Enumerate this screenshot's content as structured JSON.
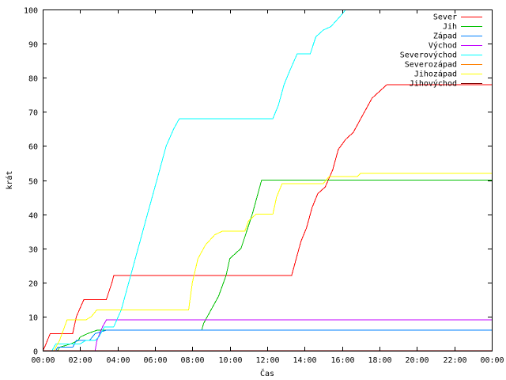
{
  "chart_data": {
    "type": "line",
    "title": "",
    "xlabel": "Čas",
    "ylabel": "krát",
    "xlim": [
      0,
      24
    ],
    "ylim": [
      0,
      100
    ],
    "grid": false,
    "legend_position": "top-right",
    "x_tick_labels": [
      "00:00",
      "02:00",
      "04:00",
      "06:00",
      "08:00",
      "10:00",
      "12:00",
      "14:00",
      "16:00",
      "18:00",
      "20:00",
      "22:00",
      "00:00"
    ],
    "y_tick_labels": [
      "0",
      "10",
      "20",
      "30",
      "40",
      "50",
      "60",
      "70",
      "80",
      "90",
      "100"
    ],
    "series": [
      {
        "name": "Sever",
        "color": "#ff0000",
        "points": [
          [
            0,
            0
          ],
          [
            0.1,
            1
          ],
          [
            0.4,
            5
          ],
          [
            1.6,
            5
          ],
          [
            1.8,
            10
          ],
          [
            2.2,
            15
          ],
          [
            3.4,
            15
          ],
          [
            3.7,
            20
          ],
          [
            3.8,
            22
          ],
          [
            13.3,
            22
          ],
          [
            13.6,
            28
          ],
          [
            13.8,
            32
          ],
          [
            14.1,
            36
          ],
          [
            14.4,
            42
          ],
          [
            14.7,
            46
          ],
          [
            15.1,
            48
          ],
          [
            15.5,
            53
          ],
          [
            15.8,
            59
          ],
          [
            16.2,
            62
          ],
          [
            16.6,
            64
          ],
          [
            17.0,
            68
          ],
          [
            17.3,
            71
          ],
          [
            17.6,
            74
          ],
          [
            18.0,
            76
          ],
          [
            18.4,
            78
          ],
          [
            24,
            78
          ]
        ]
      },
      {
        "name": "Jih",
        "color": "#00c000",
        "points": [
          [
            0,
            0
          ],
          [
            0.8,
            0
          ],
          [
            0.9,
            1
          ],
          [
            1.5,
            2
          ],
          [
            1.9,
            3
          ],
          [
            2.0,
            4
          ],
          [
            2.4,
            5
          ],
          [
            2.9,
            6
          ],
          [
            3.1,
            6
          ],
          [
            8.5,
            6
          ],
          [
            8.6,
            8
          ],
          [
            9.0,
            12
          ],
          [
            9.4,
            16
          ],
          [
            9.8,
            22
          ],
          [
            10.0,
            27
          ],
          [
            10.6,
            30
          ],
          [
            10.9,
            35
          ],
          [
            11.2,
            40
          ],
          [
            11.5,
            46
          ],
          [
            11.7,
            50
          ],
          [
            24,
            50
          ]
        ]
      },
      {
        "name": "Západ",
        "color": "#0080ff",
        "points": [
          [
            0,
            0
          ],
          [
            0.7,
            0
          ],
          [
            0.8,
            1
          ],
          [
            1.6,
            1
          ],
          [
            1.8,
            3
          ],
          [
            2.5,
            3
          ],
          [
            2.8,
            5
          ],
          [
            3.4,
            6
          ],
          [
            24,
            6
          ]
        ]
      },
      {
        "name": "Východ",
        "color": "#c000ff",
        "points": [
          [
            0,
            0
          ],
          [
            2.8,
            0
          ],
          [
            2.9,
            3
          ],
          [
            3.2,
            7
          ],
          [
            3.4,
            9
          ],
          [
            24,
            9
          ]
        ]
      },
      {
        "name": "Severovýchod",
        "color": "#00ffff",
        "points": [
          [
            0,
            0
          ],
          [
            0.5,
            0
          ],
          [
            0.7,
            2
          ],
          [
            2.0,
            2
          ],
          [
            2.3,
            3
          ],
          [
            2.8,
            3
          ],
          [
            3.0,
            4
          ],
          [
            3.3,
            7
          ],
          [
            3.8,
            7
          ],
          [
            4.2,
            12
          ],
          [
            4.6,
            20
          ],
          [
            5.1,
            30
          ],
          [
            5.6,
            40
          ],
          [
            6.1,
            50
          ],
          [
            6.6,
            60
          ],
          [
            7.0,
            65
          ],
          [
            7.3,
            68
          ],
          [
            12.3,
            68
          ],
          [
            12.6,
            72
          ],
          [
            12.9,
            78
          ],
          [
            13.2,
            82
          ],
          [
            13.6,
            87
          ],
          [
            14.3,
            87
          ],
          [
            14.6,
            92
          ],
          [
            15.0,
            94
          ],
          [
            15.4,
            95
          ],
          [
            15.9,
            98
          ],
          [
            16.2,
            100
          ]
        ]
      },
      {
        "name": "Severozápad",
        "color": "#ff8000",
        "points": [
          [
            0,
            0
          ],
          [
            24,
            0
          ]
        ]
      },
      {
        "name": "Jihozápad",
        "color": "#ffff00",
        "points": [
          [
            0,
            0
          ],
          [
            0.6,
            0
          ],
          [
            0.9,
            3
          ],
          [
            1.3,
            9
          ],
          [
            2.3,
            9
          ],
          [
            2.6,
            10
          ],
          [
            2.9,
            12
          ],
          [
            7.8,
            12
          ],
          [
            8.0,
            20
          ],
          [
            8.3,
            27
          ],
          [
            8.7,
            31
          ],
          [
            9.2,
            34
          ],
          [
            9.6,
            35
          ],
          [
            10.8,
            35
          ],
          [
            11.0,
            38
          ],
          [
            11.4,
            40
          ],
          [
            12.3,
            40
          ],
          [
            12.5,
            45
          ],
          [
            12.8,
            49
          ],
          [
            15.0,
            49
          ],
          [
            15.3,
            51
          ],
          [
            16.8,
            51
          ],
          [
            17.0,
            52
          ],
          [
            24,
            52
          ]
        ]
      },
      {
        "name": "Jihovýchod",
        "color": "#800000",
        "points": [
          [
            0,
            0
          ],
          [
            24,
            0
          ]
        ]
      }
    ]
  }
}
